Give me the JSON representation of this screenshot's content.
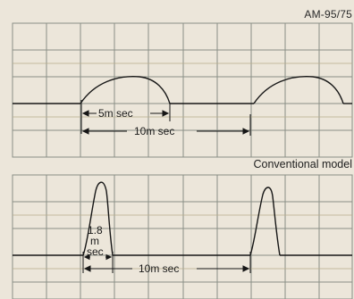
{
  "model_label": "AM-95/75",
  "conventional_label": "Conventional model",
  "panels": [
    {
      "name": "am-model",
      "pulse_width_label": "5m sec",
      "period_label": "10m sec"
    },
    {
      "name": "conventional",
      "pulse_width_label_lines": [
        "1.8",
        "m",
        "sec"
      ],
      "period_label": "10m sec"
    }
  ],
  "colors": {
    "background": "#ece6da",
    "grid": "#8a8f86",
    "grid_accent": "#9ea08a",
    "trace": "#161616"
  }
}
